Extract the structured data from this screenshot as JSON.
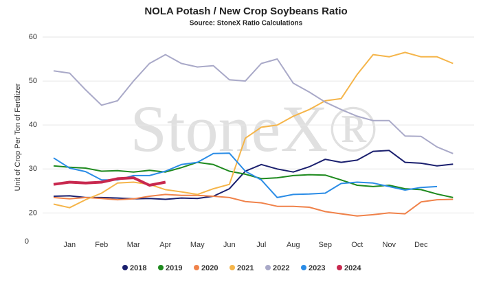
{
  "chart_data": {
    "type": "line",
    "title": "NOLA Potash / New Crop Soybeans Ratio",
    "subtitle": "Source: StoneX Ratio Calculations",
    "y_label": "Unit of Crop Per Ton of Fertilizer",
    "watermark": "StoneX®",
    "corner_label": "0",
    "categories": [
      null,
      "Jan",
      null,
      "Feb",
      null,
      "Mar",
      null,
      "Apr",
      null,
      "May",
      null,
      "Jun",
      null,
      "Jul",
      null,
      "Aug",
      null,
      "Sep",
      null,
      "Oct",
      null,
      "Nov",
      null,
      "Dec",
      null,
      null
    ],
    "ylim": [
      13.5,
      60
    ],
    "yticks": [
      20,
      30,
      40,
      50,
      60
    ],
    "grid": true,
    "legend": "bottom",
    "series": [
      {
        "name": "2018",
        "color": "#1a1f6e",
        "values": [
          23.8,
          23.9,
          23.5,
          23.5,
          23.4,
          23.2,
          23.3,
          23.1,
          23.4,
          23.3,
          23.8,
          25.5,
          29.5,
          31.0,
          30.0,
          29.3,
          30.5,
          32.2,
          31.5,
          32.0,
          34.0,
          34.2,
          31.5,
          31.3,
          30.7,
          31.1
        ]
      },
      {
        "name": "2019",
        "color": "#1e8a1e",
        "values": [
          30.7,
          30.4,
          30.2,
          29.5,
          29.6,
          29.3,
          29.7,
          29.3,
          30.3,
          31.5,
          31.0,
          29.5,
          28.8,
          27.8,
          28.0,
          28.5,
          28.7,
          28.6,
          27.5,
          26.3,
          26.0,
          26.3,
          25.5,
          25.3,
          24.3,
          23.5
        ]
      },
      {
        "name": "2020",
        "color": "#f0824a",
        "values": [
          23.5,
          23.2,
          23.5,
          23.3,
          23.0,
          23.2,
          23.8,
          24.2,
          24.0,
          24.0,
          23.8,
          23.5,
          22.6,
          22.3,
          21.5,
          21.5,
          21.3,
          20.3,
          19.8,
          19.3,
          19.6,
          20.0,
          19.8,
          22.5,
          23.0,
          23.1
        ]
      },
      {
        "name": "2021",
        "color": "#f5b54a",
        "values": [
          22.0,
          21.2,
          23.0,
          24.5,
          26.8,
          27.0,
          26.5,
          25.3,
          24.8,
          24.2,
          25.5,
          26.5,
          37.0,
          39.5,
          40.0,
          42.0,
          43.5,
          45.5,
          46.0,
          51.5,
          56.0,
          55.5,
          56.5,
          55.5,
          55.5,
          54.0
        ]
      },
      {
        "name": "2022",
        "color": "#a9a9c8",
        "values": [
          52.3,
          51.8,
          48.0,
          44.5,
          45.5,
          50.0,
          54.0,
          56.0,
          54.0,
          53.2,
          53.5,
          50.3,
          50.0,
          54.0,
          55.0,
          49.5,
          47.5,
          45.2,
          43.5,
          42.0,
          41.0,
          41.0,
          37.5,
          37.4,
          35.0,
          33.5
        ]
      },
      {
        "name": "2023",
        "color": "#2a8ce6",
        "values": [
          32.5,
          30.2,
          29.4,
          27.5,
          27.5,
          28.5,
          28.5,
          29.5,
          31.0,
          31.5,
          33.5,
          33.6,
          29.5,
          27.5,
          23.5,
          24.2,
          24.3,
          24.5,
          26.7,
          27.0,
          26.8,
          26.0,
          25.2,
          25.8,
          26.0,
          null
        ]
      },
      {
        "name": "2024",
        "color": "#c8284e",
        "values": [
          26.5,
          27.0,
          26.8,
          27.0,
          27.8,
          28.0,
          26.3,
          27.0,
          null,
          null,
          null,
          null,
          null,
          null,
          null,
          null,
          null,
          null,
          null,
          null,
          null,
          null,
          null,
          null,
          null,
          null
        ]
      }
    ]
  }
}
